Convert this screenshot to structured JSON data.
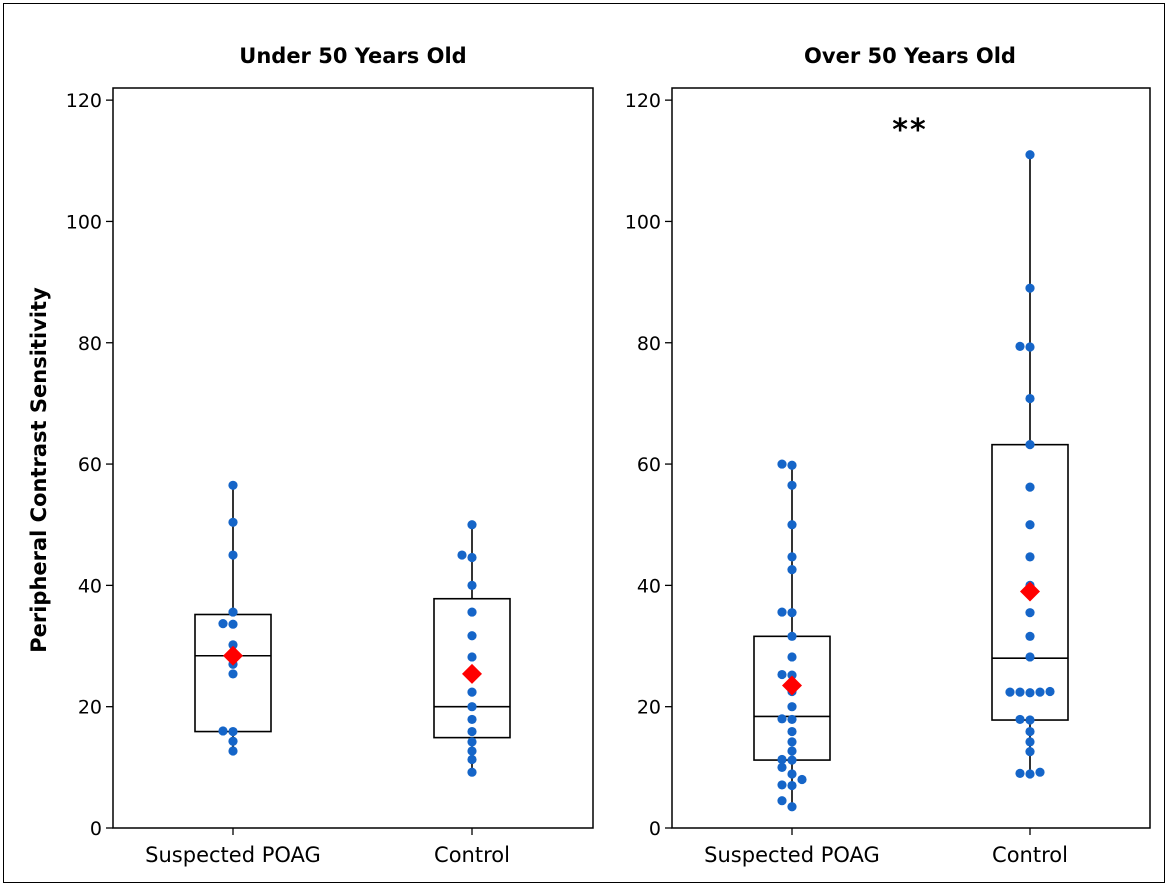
{
  "chart_data": {
    "type": "box",
    "ylabel": "Peripheral Contrast Sensitivity",
    "ylim": [
      0,
      122
    ],
    "yticks": [
      0,
      20,
      40,
      60,
      80,
      100,
      120
    ],
    "point_color": "#1565c8",
    "mean_color": "#ff0000",
    "panels": [
      {
        "title": "Under 50 Years Old",
        "annotation": "",
        "categories": [
          "Suspected POAG",
          "Control"
        ],
        "groups": [
          {
            "category": "Suspected POAG",
            "whisker_low": 12.7,
            "q1": 15.9,
            "median": 28.4,
            "q3": 35.2,
            "whisker_high": 56.5,
            "mean": 28.4,
            "points": [
              12.7,
              14.3,
              15.9,
              16.0,
              25.4,
              27.0,
              28.5,
              30.2,
              33.6,
              33.7,
              35.6,
              45.0,
              50.4,
              56.5
            ]
          },
          {
            "category": "Control",
            "whisker_low": 9.2,
            "q1": 14.9,
            "median": 20.0,
            "q3": 37.8,
            "whisker_high": 50.0,
            "mean": 25.4,
            "points": [
              9.2,
              11.3,
              12.7,
              14.2,
              15.9,
              17.9,
              20.0,
              22.4,
              25.2,
              28.2,
              31.7,
              35.6,
              40.0,
              44.6,
              45.0,
              50.0
            ]
          }
        ]
      },
      {
        "title": "Over 50 Years Old",
        "annotation": "**",
        "categories": [
          "Suspected POAG",
          "Control"
        ],
        "groups": [
          {
            "category": "Suspected POAG",
            "whisker_low": 3.5,
            "q1": 11.2,
            "median": 18.4,
            "q3": 31.6,
            "whisker_high": 60.0,
            "mean": 23.5,
            "points": [
              3.5,
              4.5,
              7.0,
              7.1,
              8.0,
              8.9,
              10.0,
              11.2,
              11.3,
              12.7,
              14.2,
              15.9,
              17.9,
              18.0,
              20.0,
              22.5,
              25.2,
              25.3,
              28.2,
              31.6,
              35.5,
              35.6,
              42.6,
              44.7,
              50.0,
              56.5,
              59.8,
              60.0
            ]
          },
          {
            "category": "Control",
            "whisker_low": 8.9,
            "q1": 17.8,
            "median": 28.0,
            "q3": 63.2,
            "whisker_high": 111.0,
            "mean": 39.0,
            "points": [
              8.9,
              9.0,
              9.2,
              12.6,
              14.2,
              15.9,
              17.8,
              17.9,
              22.3,
              22.4,
              22.4,
              22.5,
              22.4,
              28.2,
              31.6,
              35.5,
              40.0,
              44.7,
              50.0,
              56.2,
              63.2,
              70.8,
              79.3,
              79.4,
              89.0,
              111.0
            ]
          }
        ]
      }
    ]
  }
}
